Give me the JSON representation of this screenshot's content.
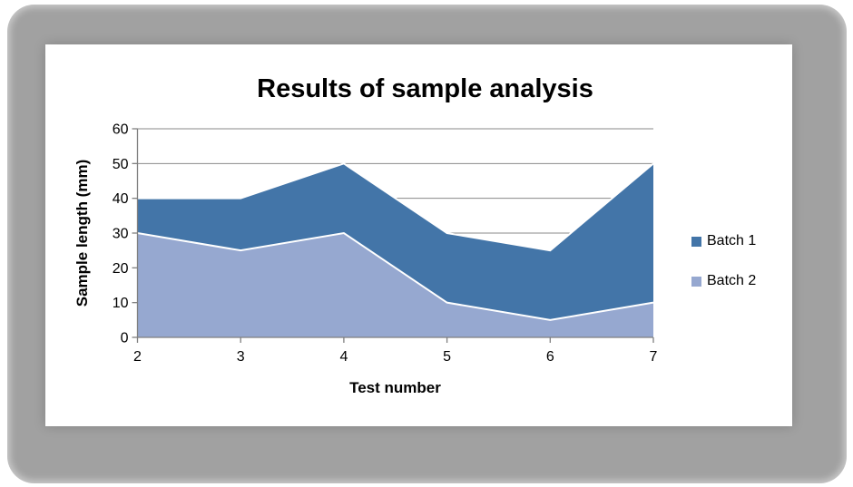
{
  "frame": {
    "page_background": "#ffffff",
    "frame_background": "#a1a1a1",
    "card_background": "#ffffff"
  },
  "colors": {
    "gridline": "#8a8a8a",
    "axis": "#7f7f7f",
    "series_border": "#ffffff",
    "text": "#000000",
    "batch1_blue": "#4375A8",
    "batch2_light_blue": "#96A8D0"
  },
  "chart_data": {
    "type": "area",
    "stacked": true,
    "title": "Results of sample analysis",
    "xlabel": "Test number",
    "ylabel": "Sample length (mm)",
    "x": [
      2,
      3,
      4,
      5,
      6,
      7
    ],
    "xtick_labels": [
      "2",
      "3",
      "4",
      "5",
      "6",
      "7"
    ],
    "yticks": [
      0,
      10,
      20,
      30,
      40,
      50,
      60
    ],
    "ylim": [
      0,
      60
    ],
    "xlim": [
      2,
      7
    ],
    "grid": true,
    "legend_position": "right",
    "stack_bottom_to_top": [
      "Batch 2",
      "Batch 1"
    ],
    "series": [
      {
        "name": "Batch 1",
        "color": "#4375A8",
        "values": [
          10,
          15,
          20,
          20,
          20,
          40
        ]
      },
      {
        "name": "Batch 2",
        "color": "#96A8D0",
        "values": [
          30,
          25,
          30,
          10,
          5,
          10
        ]
      }
    ],
    "stack_totals": [
      40,
      40,
      50,
      30,
      25,
      50
    ]
  }
}
